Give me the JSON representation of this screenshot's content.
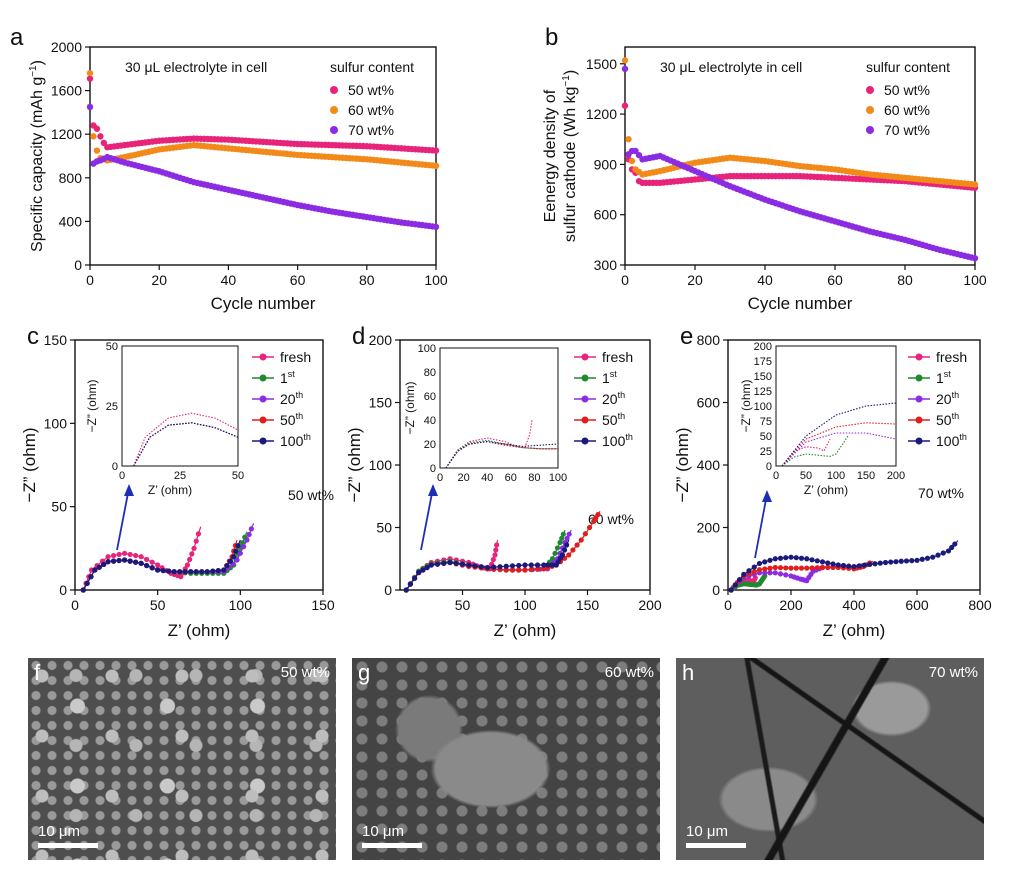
{
  "chart_data": [
    {
      "panel": "a",
      "type": "scatter",
      "xlabel": "Cycle number",
      "ylabel_main": "Specific capacity (mAh g",
      "ylabel_sup": "−1",
      "ylabel_end": ")",
      "xlim": [
        0,
        100
      ],
      "ylim": [
        0,
        2000
      ],
      "xticks": [
        0,
        20,
        40,
        60,
        80,
        100
      ],
      "yticks": [
        0,
        400,
        800,
        1200,
        1600,
        2000
      ],
      "annotation": "30 μL electrolyte in cell",
      "legend_title": "sulfur content",
      "legend_position": "top-right",
      "series": [
        {
          "name": "50 wt%",
          "color": "#e8237a",
          "x": [
            0,
            1,
            2,
            3,
            4,
            5,
            10,
            20,
            30,
            40,
            50,
            60,
            70,
            80,
            90,
            100
          ],
          "y": [
            1710,
            1280,
            1250,
            1180,
            1120,
            1080,
            1100,
            1140,
            1160,
            1150,
            1130,
            1110,
            1100,
            1090,
            1070,
            1050
          ]
        },
        {
          "name": "60 wt%",
          "color": "#f28a1a",
          "x": [
            0,
            1,
            2,
            3,
            5,
            10,
            20,
            30,
            40,
            50,
            60,
            70,
            80,
            90,
            100
          ],
          "y": [
            1760,
            1180,
            1050,
            980,
            960,
            990,
            1060,
            1100,
            1070,
            1040,
            1010,
            990,
            970,
            940,
            910
          ]
        },
        {
          "name": "70 wt%",
          "color": "#8b2be2",
          "x": [
            0,
            1,
            2,
            3,
            5,
            10,
            20,
            30,
            40,
            50,
            60,
            70,
            80,
            90,
            100
          ],
          "y": [
            1450,
            930,
            950,
            960,
            990,
            940,
            860,
            760,
            690,
            620,
            550,
            490,
            440,
            390,
            350
          ]
        }
      ]
    },
    {
      "panel": "b",
      "type": "scatter",
      "xlabel": "Cycle number",
      "ylabel_line1": "Eenergy density of",
      "ylabel_line2_main": "sulfur cathode (Wh kg",
      "ylabel_line2_sup": "−1",
      "ylabel_line2_end": ")",
      "xlim": [
        0,
        100
      ],
      "ylim": [
        300,
        1600
      ],
      "xticks": [
        0,
        20,
        40,
        60,
        80,
        100
      ],
      "yticks": [
        300,
        600,
        900,
        1200,
        1500
      ],
      "annotation": "30 μL electrolyte in cell",
      "legend_title": "sulfur content",
      "legend_position": "top-right",
      "series": [
        {
          "name": "50 wt%",
          "color": "#e8237a",
          "x": [
            0,
            1,
            2,
            3,
            4,
            5,
            10,
            20,
            30,
            40,
            50,
            60,
            70,
            80,
            90,
            100
          ],
          "y": [
            1250,
            930,
            870,
            850,
            800,
            790,
            790,
            810,
            830,
            830,
            830,
            820,
            810,
            800,
            780,
            760
          ]
        },
        {
          "name": "60 wt%",
          "color": "#f28a1a",
          "x": [
            0,
            1,
            2,
            3,
            5,
            10,
            20,
            30,
            40,
            50,
            60,
            70,
            80,
            90,
            100
          ],
          "y": [
            1520,
            1050,
            920,
            870,
            840,
            860,
            910,
            940,
            920,
            890,
            870,
            840,
            820,
            800,
            780
          ]
        },
        {
          "name": "70 wt%",
          "color": "#8b2be2",
          "x": [
            0,
            1,
            2,
            3,
            5,
            10,
            20,
            30,
            40,
            50,
            60,
            70,
            80,
            90,
            100
          ],
          "y": [
            1470,
            960,
            980,
            980,
            930,
            950,
            860,
            770,
            690,
            620,
            560,
            500,
            450,
            390,
            340
          ]
        }
      ]
    },
    {
      "panel": "c",
      "type": "line",
      "xlabel": "Z’ (ohm)",
      "ylabel": "−Z” (ohm)",
      "xlim": [
        0,
        150
      ],
      "ylim": [
        0,
        150
      ],
      "xticks": [
        0,
        50,
        100,
        150
      ],
      "yticks": [
        0,
        50,
        100,
        150
      ],
      "annotation": "50 wt%",
      "inset": {
        "xlabel": "Z’ (ohm)",
        "ylabel": "−Z” (ohm)",
        "xlim": [
          0,
          50
        ],
        "ylim": [
          0,
          50
        ],
        "xticks": [
          0,
          25,
          50
        ],
        "yticks": [
          0,
          25,
          50
        ]
      },
      "series": [
        {
          "name": "fresh",
          "color": "#e8237a",
          "x": [
            5,
            10,
            20,
            30,
            40,
            50,
            58,
            64,
            68,
            72,
            76
          ],
          "y": [
            0,
            12,
            20,
            22,
            20,
            15,
            10,
            8,
            15,
            25,
            38
          ]
        },
        {
          "name": "1st",
          "color": "#1f8a2e",
          "x": [
            5,
            12,
            20,
            30,
            40,
            50,
            60,
            70,
            80,
            90,
            96,
            100,
            104
          ],
          "y": [
            0,
            12,
            17,
            18,
            16,
            12,
            11,
            10,
            10,
            10,
            15,
            25,
            35
          ]
        },
        {
          "name": "20th",
          "color": "#8b2be2",
          "x": [
            5,
            12,
            20,
            30,
            40,
            50,
            60,
            70,
            80,
            90,
            98,
            104,
            108
          ],
          "y": [
            0,
            12,
            17,
            18,
            16,
            12,
            11,
            11,
            11,
            11,
            18,
            30,
            40
          ]
        },
        {
          "name": "50th",
          "color": "#e01e1e",
          "x": [
            5,
            12,
            20,
            30,
            40,
            50,
            60,
            70,
            80,
            90,
            95,
            98
          ],
          "y": [
            0,
            12,
            17,
            18,
            16,
            12,
            11,
            11,
            11,
            12,
            20,
            30
          ]
        },
        {
          "name": "100th",
          "color": "#1a1a7a",
          "x": [
            5,
            12,
            20,
            30,
            40,
            50,
            60,
            70,
            80,
            90,
            96,
            100
          ],
          "y": [
            0,
            12,
            17,
            18,
            16,
            12,
            11,
            11,
            11,
            12,
            20,
            30
          ]
        }
      ],
      "legend": [
        {
          "main": "fresh",
          "sup": ""
        },
        {
          "main": "1",
          "sup": "st"
        },
        {
          "main": "20",
          "sup": "th"
        },
        {
          "main": "50",
          "sup": "th"
        },
        {
          "main": "100",
          "sup": "th"
        }
      ]
    },
    {
      "panel": "d",
      "type": "line",
      "xlabel": "Z’ (ohm)",
      "ylabel": "−Z” (ohm)",
      "xlim": [
        0,
        200
      ],
      "ylim": [
        0,
        200
      ],
      "xticks": [
        50,
        100,
        150,
        200
      ],
      "yticks": [
        0,
        50,
        100,
        150,
        200
      ],
      "annotation": "60 wt%",
      "inset": {
        "xlabel": "",
        "ylabel": "−Z” (ohm)",
        "xlim": [
          0,
          100
        ],
        "ylim": [
          0,
          100
        ],
        "xticks": [
          0,
          20,
          40,
          60,
          80,
          100
        ],
        "yticks": [
          0,
          20,
          40,
          60,
          80,
          100
        ]
      },
      "series": [
        {
          "name": "fresh",
          "color": "#e8237a",
          "x": [
            5,
            15,
            25,
            40,
            55,
            65,
            72,
            76,
            78
          ],
          "y": [
            0,
            15,
            22,
            25,
            22,
            18,
            17,
            28,
            40
          ]
        },
        {
          "name": "1st",
          "color": "#1f8a2e",
          "x": [
            5,
            15,
            25,
            40,
            55,
            70,
            85,
            100,
            115,
            122,
            128,
            132
          ],
          "y": [
            0,
            15,
            21,
            23,
            20,
            17,
            16,
            16,
            17,
            25,
            38,
            48
          ]
        },
        {
          "name": "20th",
          "color": "#8b2be2",
          "x": [
            5,
            15,
            25,
            40,
            55,
            70,
            85,
            100,
            118,
            126,
            132,
            137
          ],
          "y": [
            0,
            14,
            20,
            22,
            19,
            17,
            16,
            16,
            17,
            25,
            38,
            48
          ]
        },
        {
          "name": "50th",
          "color": "#e01e1e",
          "x": [
            5,
            15,
            25,
            40,
            55,
            70,
            85,
            100,
            115,
            125,
            135,
            145,
            155,
            160
          ],
          "y": [
            0,
            14,
            20,
            22,
            19,
            17,
            16,
            16,
            17,
            20,
            28,
            40,
            55,
            63
          ]
        },
        {
          "name": "100th",
          "color": "#1a1a7a",
          "x": [
            5,
            15,
            25,
            40,
            55,
            70,
            85,
            100,
            115,
            125,
            130,
            135
          ],
          "y": [
            0,
            14,
            20,
            22,
            20,
            18,
            19,
            20,
            20,
            20,
            28,
            40
          ]
        }
      ],
      "legend": [
        {
          "main": "fresh",
          "sup": ""
        },
        {
          "main": "1",
          "sup": "st"
        },
        {
          "main": "20",
          "sup": "th"
        },
        {
          "main": "50",
          "sup": "th"
        },
        {
          "main": "100",
          "sup": "th"
        }
      ]
    },
    {
      "panel": "e",
      "type": "line",
      "xlabel": "Z’ (ohm)",
      "ylabel": "−Z” (ohm)",
      "xlim": [
        0,
        800
      ],
      "ylim": [
        0,
        800
      ],
      "xticks": [
        0,
        200,
        400,
        600,
        800
      ],
      "yticks": [
        0,
        200,
        400,
        600,
        800
      ],
      "annotation": "70 wt%",
      "inset": {
        "xlabel": "Z’ (ohm)",
        "ylabel": "−Z” (ohm)",
        "xlim": [
          0,
          200
        ],
        "ylim": [
          0,
          200
        ],
        "xticks": [
          0,
          50,
          100,
          150,
          200
        ],
        "yticks": [
          0,
          25,
          50,
          75,
          100,
          125,
          150,
          175,
          200
        ]
      },
      "series": [
        {
          "name": "fresh",
          "color": "#e8237a",
          "x": [
            10,
            30,
            50,
            70,
            80,
            90
          ],
          "y": [
            0,
            25,
            32,
            30,
            25,
            45
          ]
        },
        {
          "name": "1st",
          "color": "#1f8a2e",
          "x": [
            10,
            30,
            50,
            70,
            90,
            100,
            110,
            120
          ],
          "y": [
            0,
            15,
            20,
            18,
            16,
            20,
            35,
            50
          ]
        },
        {
          "name": "20th",
          "color": "#8b2be2",
          "x": [
            10,
            50,
            100,
            150,
            200,
            230,
            250,
            270,
            300,
            350,
            400,
            440
          ],
          "y": [
            0,
            40,
            55,
            55,
            45,
            35,
            30,
            60,
            72,
            75,
            72,
            80
          ]
        },
        {
          "name": "50th",
          "color": "#e01e1e",
          "x": [
            10,
            50,
            100,
            150,
            200,
            250,
            300,
            350,
            400,
            430,
            460
          ],
          "y": [
            0,
            45,
            65,
            72,
            70,
            70,
            72,
            72,
            68,
            75,
            92
          ]
        },
        {
          "name": "100th",
          "color": "#1a1a7a",
          "x": [
            10,
            50,
            100,
            150,
            200,
            250,
            300,
            350,
            400,
            450,
            500,
            550,
            600,
            650,
            700,
            730
          ],
          "y": [
            0,
            50,
            85,
            100,
            105,
            100,
            90,
            80,
            75,
            82,
            88,
            92,
            95,
            105,
            125,
            158
          ]
        }
      ],
      "legend": [
        {
          "main": "fresh",
          "sup": ""
        },
        {
          "main": "1",
          "sup": "st"
        },
        {
          "main": "20",
          "sup": "th"
        },
        {
          "main": "50",
          "sup": "th"
        },
        {
          "main": "100",
          "sup": "th"
        }
      ]
    }
  ],
  "images": [
    {
      "panel": "f",
      "label": "50 wt%",
      "scale": "10 μm"
    },
    {
      "panel": "g",
      "label": "60 wt%",
      "scale": "10 μm"
    },
    {
      "panel": "h",
      "label": "70 wt%",
      "scale": "10 μm"
    }
  ]
}
